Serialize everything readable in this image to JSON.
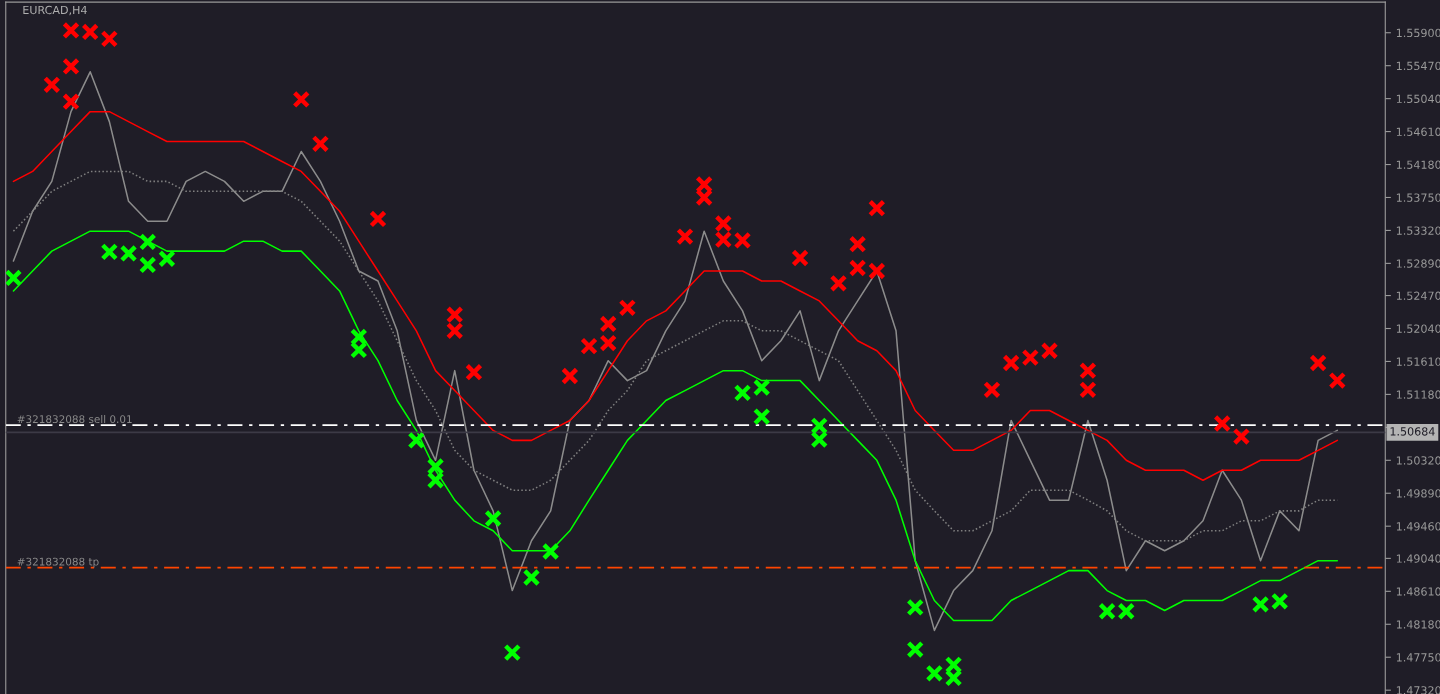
{
  "chart_data": {
    "type": "line",
    "title": "EURCAD,H4",
    "categories": [
      null,
      null,
      null,
      null,
      null,
      null,
      null,
      null,
      null,
      null,
      null,
      null,
      null,
      null,
      null,
      null,
      null,
      null,
      null,
      null,
      null,
      null,
      null,
      null,
      null,
      null,
      null,
      null,
      null,
      null,
      null,
      null,
      null,
      null,
      null,
      null,
      null,
      null,
      null,
      null,
      null,
      null,
      null,
      null,
      null,
      null,
      null,
      null,
      null,
      null,
      null,
      null,
      null,
      null,
      null,
      null,
      null,
      null,
      null,
      null,
      null,
      null,
      null,
      null,
      null,
      null,
      null,
      null,
      null,
      null
    ],
    "series": [
      {
        "color": "#8c8c8c",
        "line_style": "solid",
        "marker": "none",
        "values": [
          1.5292,
          1.5357,
          1.5396,
          1.5487,
          1.5539,
          1.5474,
          1.537,
          1.5344,
          1.5344,
          1.5396,
          1.5409,
          1.5396,
          1.537,
          1.5383,
          1.5383,
          1.5435,
          1.5396,
          1.5344,
          1.5279,
          1.5266,
          1.5201,
          1.5084,
          1.5032,
          1.5149,
          1.5019,
          1.4966,
          1.4862,
          1.4927,
          1.4966,
          1.5084,
          1.511,
          1.5162,
          1.5136,
          1.5149,
          1.5201,
          1.524,
          1.5331,
          1.5266,
          1.5227,
          1.5162,
          1.5188,
          1.5227,
          1.5136,
          1.5201,
          1.524,
          1.5279,
          1.5201,
          1.4901,
          1.481,
          1.4862,
          1.4888,
          1.494,
          1.5084,
          1.5032,
          1.498,
          1.498,
          1.5084,
          1.5006,
          1.4888,
          1.4927,
          1.4914,
          1.4927,
          1.4953,
          1.5019,
          1.498,
          1.4901,
          1.4966,
          1.494,
          1.5058,
          1.5071
        ]
      },
      {
        "color": "#ff0000",
        "line_style": "solid",
        "marker": "none",
        "values": [
          1.5396,
          1.5409,
          1.5435,
          1.5461,
          1.5487,
          1.5487,
          1.5474,
          1.5461,
          1.5448,
          1.5448,
          1.5448,
          1.5448,
          1.5448,
          1.5435,
          1.5422,
          1.5409,
          1.5383,
          1.5357,
          1.5318,
          1.5279,
          1.524,
          1.5201,
          1.5149,
          1.5123,
          1.5097,
          1.5071,
          1.5058,
          1.5058,
          1.5071,
          1.5084,
          1.511,
          1.5149,
          1.5188,
          1.5214,
          1.5227,
          1.5253,
          1.5279,
          1.5279,
          1.5279,
          1.5266,
          1.5266,
          1.5253,
          1.524,
          1.5214,
          1.5188,
          1.5175,
          1.5149,
          1.5097,
          1.5071,
          1.5045,
          1.5045,
          1.5058,
          1.5071,
          1.5097,
          1.5097,
          1.5084,
          1.5071,
          1.5058,
          1.5032,
          1.5019,
          1.5019,
          1.5019,
          1.5006,
          1.5019,
          1.5019,
          1.5032,
          1.5032,
          1.5032,
          1.5045,
          1.5058
        ]
      },
      {
        "color": "#808080",
        "line_style": "dotted",
        "marker": "none",
        "values": [
          1.5331,
          1.5357,
          1.5383,
          1.5396,
          1.5409,
          1.5409,
          1.5409,
          1.5396,
          1.5396,
          1.5383,
          1.5383,
          1.5383,
          1.5383,
          1.5383,
          1.5383,
          1.537,
          1.5344,
          1.5318,
          1.5279,
          1.524,
          1.5188,
          1.5136,
          1.5097,
          1.5045,
          1.5019,
          1.5006,
          1.4993,
          1.4993,
          1.5006,
          1.5032,
          1.5058,
          1.5097,
          1.5123,
          1.5162,
          1.5175,
          1.5188,
          1.5201,
          1.5214,
          1.5214,
          1.5201,
          1.5201,
          1.5188,
          1.5175,
          1.5162,
          1.5123,
          1.5084,
          1.5045,
          1.4993,
          1.4966,
          1.494,
          1.494,
          1.4953,
          1.4966,
          1.4993,
          1.4993,
          1.4993,
          1.498,
          1.4966,
          1.494,
          1.4927,
          1.4927,
          1.4927,
          1.494,
          1.494,
          1.4953,
          1.4953,
          1.4966,
          1.4966,
          1.498,
          1.498
        ]
      },
      {
        "color": "#00ff00",
        "line_style": "solid",
        "marker": "none",
        "values": [
          1.5253,
          1.5279,
          1.5305,
          1.5318,
          1.5331,
          1.5331,
          1.5331,
          1.5318,
          1.5305,
          1.5305,
          1.5305,
          1.5305,
          1.5318,
          1.5318,
          1.5305,
          1.5305,
          1.5279,
          1.5253,
          1.5201,
          1.5162,
          1.511,
          1.5071,
          1.5019,
          1.498,
          1.4953,
          1.494,
          1.4914,
          1.4914,
          1.4914,
          1.494,
          1.498,
          1.5019,
          1.5058,
          1.5084,
          1.511,
          1.5123,
          1.5136,
          1.5149,
          1.5149,
          1.5136,
          1.5136,
          1.5136,
          1.511,
          1.5084,
          1.5058,
          1.5032,
          1.498,
          1.4901,
          1.4849,
          1.4823,
          1.4823,
          1.4823,
          1.4849,
          1.4862,
          1.4875,
          1.4888,
          1.4888,
          1.4862,
          1.4849,
          1.4849,
          1.4836,
          1.4849,
          1.4849,
          1.4849,
          1.4862,
          1.4875,
          1.4875,
          1.4888,
          1.4901,
          1.4901
        ]
      },
      {
        "type": "scatter",
        "color": "#ff0000",
        "marker": "cross",
        "values": [
          null,
          null,
          1.5522,
          1.5593,
          1.5591,
          1.5582,
          null,
          null,
          null,
          null,
          null,
          null,
          null,
          null,
          null,
          1.5503,
          1.5445,
          null,
          null,
          1.5347,
          null,
          null,
          null,
          1.5222,
          1.5147,
          null,
          null,
          null,
          null,
          1.5142,
          1.5181,
          1.521,
          1.5231,
          null,
          null,
          1.5324,
          1.5375,
          1.532,
          1.5319,
          null,
          null,
          1.5296,
          null,
          1.5263,
          1.5283,
          1.5279,
          null,
          null,
          null,
          null,
          null,
          1.5124,
          1.5159,
          1.5166,
          1.5175,
          null,
          1.5149,
          null,
          null,
          null,
          null,
          null,
          null,
          1.508,
          1.5063,
          null,
          null,
          null,
          1.5159,
          1.5136
        ]
      },
      {
        "type": "scatter",
        "color": "#ff0000",
        "marker": "cross",
        "values": [
          null,
          null,
          null,
          1.5546,
          null,
          null,
          null,
          null,
          null,
          null,
          null,
          null,
          null,
          null,
          null,
          null,
          null,
          null,
          null,
          null,
          null,
          null,
          null,
          1.5201,
          null,
          null,
          null,
          null,
          null,
          null,
          null,
          1.5185,
          null,
          null,
          null,
          null,
          1.5392,
          1.5341,
          null,
          null,
          null,
          null,
          null,
          null,
          1.5314,
          1.5361,
          null,
          null,
          null,
          null,
          null,
          null,
          null,
          null,
          null,
          null,
          1.5124,
          null,
          null,
          null,
          null,
          null,
          null,
          null,
          null,
          null,
          null,
          null,
          null,
          null
        ]
      },
      {
        "type": "scatter",
        "color": "#ff0000",
        "marker": "cross",
        "values": [
          null,
          null,
          null,
          1.55,
          null,
          null,
          null,
          null,
          null,
          null,
          null,
          null,
          null,
          null,
          null,
          null,
          null,
          null,
          null,
          null,
          null,
          null,
          null,
          null,
          null,
          null,
          null,
          null,
          null,
          null,
          null,
          null,
          null,
          null,
          null,
          null,
          null,
          null,
          null,
          null,
          null,
          null,
          null,
          null,
          null,
          null,
          null,
          null,
          null,
          null,
          null,
          null,
          null,
          null,
          null,
          null,
          null,
          null,
          null,
          null,
          null,
          null,
          null,
          null,
          null,
          null,
          null,
          null,
          null,
          null
        ]
      },
      {
        "type": "scatter",
        "color": "#00ff00",
        "marker": "cross",
        "values": [
          1.527,
          null,
          null,
          null,
          null,
          1.5304,
          1.5302,
          1.5317,
          1.5295,
          null,
          null,
          null,
          null,
          null,
          null,
          null,
          null,
          null,
          1.5193,
          null,
          null,
          1.5058,
          1.5024,
          null,
          null,
          1.4956,
          1.4781,
          1.4879,
          1.4913,
          null,
          null,
          null,
          null,
          null,
          null,
          null,
          null,
          null,
          1.512,
          1.5127,
          null,
          null,
          1.5077,
          null,
          null,
          null,
          null,
          1.484,
          1.4754,
          1.4748,
          null,
          null,
          null,
          null,
          null,
          null,
          null,
          1.4835,
          1.4835,
          null,
          null,
          null,
          null,
          null,
          null,
          1.4844,
          1.4848,
          null,
          null,
          null
        ]
      },
      {
        "type": "scatter",
        "color": "#00ff00",
        "marker": "cross",
        "values": [
          null,
          null,
          null,
          null,
          null,
          null,
          null,
          1.5287,
          null,
          null,
          null,
          null,
          null,
          null,
          null,
          null,
          null,
          null,
          1.5176,
          null,
          null,
          null,
          1.5006,
          null,
          null,
          null,
          null,
          null,
          null,
          null,
          null,
          null,
          null,
          null,
          null,
          null,
          null,
          null,
          null,
          1.5089,
          null,
          null,
          1.5059,
          null,
          null,
          null,
          null,
          1.4785,
          null,
          1.4765,
          null,
          null,
          null,
          null,
          null,
          null,
          null,
          null,
          null,
          null,
          null,
          null,
          null,
          null,
          null,
          null,
          null,
          null,
          null,
          null
        ]
      }
    ],
    "ylim": [
      1.4727,
      1.563
    ],
    "yticks": [
      {
        "value": 1.559,
        "label": "1.55900"
      },
      {
        "value": 1.5547,
        "label": "1.55470"
      },
      {
        "value": 1.5504,
        "label": "1.55040"
      },
      {
        "value": 1.5461,
        "label": "1.54610"
      },
      {
        "value": 1.5418,
        "label": "1.54180"
      },
      {
        "value": 1.5375,
        "label": "1.53750"
      },
      {
        "value": 1.5332,
        "label": "1.53320"
      },
      {
        "value": 1.5289,
        "label": "1.52890"
      },
      {
        "value": 1.5247,
        "label": "1.52470"
      },
      {
        "value": 1.5204,
        "label": "1.52040"
      },
      {
        "value": 1.5161,
        "label": "1.51610"
      },
      {
        "value": 1.5118,
        "label": "1.51180"
      },
      {
        "value": 1.5075,
        "label": null
      },
      {
        "value": 1.5032,
        "label": "1.50320"
      },
      {
        "value": 1.4989,
        "label": "1.49890"
      },
      {
        "value": 1.4946,
        "label": "1.49460"
      },
      {
        "value": 1.4904,
        "label": "1.49040"
      },
      {
        "value": 1.4861,
        "label": "1.48610"
      },
      {
        "value": 1.4818,
        "label": "1.48180"
      },
      {
        "value": 1.4775,
        "label": "1.47750"
      },
      {
        "value": 1.4732,
        "label": "1.47320"
      }
    ],
    "ref_lines": [
      {
        "axis": "y",
        "value": 1.5078,
        "label": "#321832088 sell 0.01",
        "color": "#ffffff",
        "line_style": "dashed"
      },
      {
        "axis": "y",
        "value": 1.4892,
        "label": "#321832088 tp",
        "color": "#ff4500",
        "line_style": "dashed"
      },
      {
        "axis": "y",
        "value": 1.50684,
        "label": "1.50684",
        "color": "#3c3a46",
        "line_style": "solid"
      }
    ],
    "grid": false,
    "legend": false,
    "tick_labels": "y"
  }
}
